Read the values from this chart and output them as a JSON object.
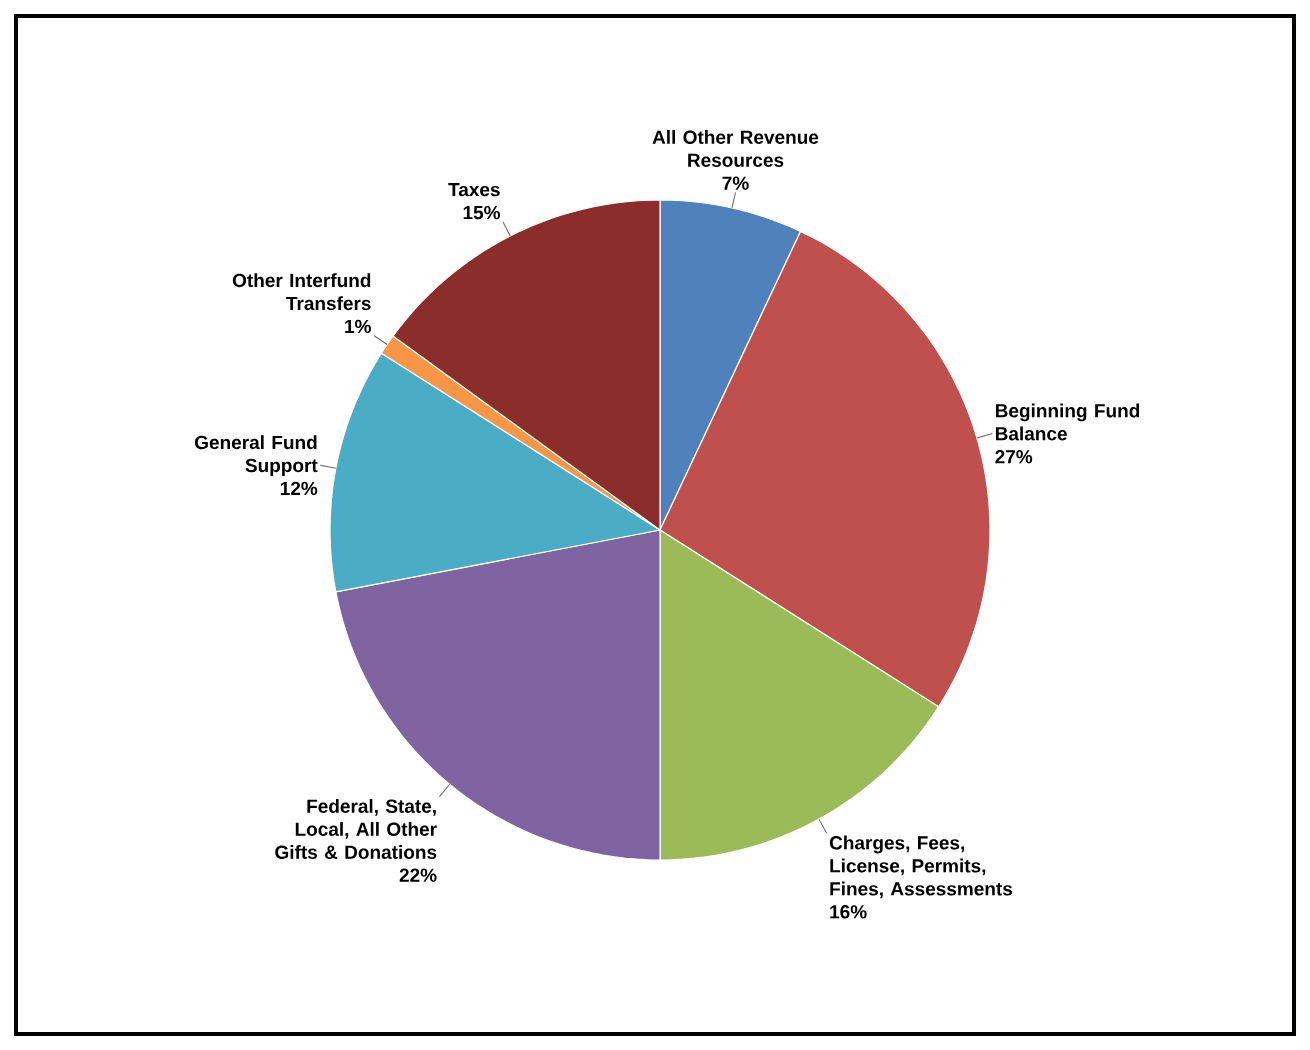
{
  "chart_data": {
    "type": "pie",
    "categories": [
      "All Other Revenue Resources",
      "Beginning Fund Balance",
      "Charges, Fees, License, Permits, Fines, Assessments",
      "Federal, State, Local, All Other Gifts & Donations",
      "General Fund Support",
      "Other Interfund Transfers",
      "Taxes"
    ],
    "values": [
      7,
      27,
      16,
      22,
      12,
      1,
      15
    ],
    "value_labels": [
      "7%",
      "27%",
      "16%",
      "22%",
      "12%",
      "1%",
      "15%"
    ],
    "colors": [
      "#4f81bd",
      "#c0504d",
      "#9bbb59",
      "#8064a2",
      "#4bacc6",
      "#f79646",
      "#8b2e2b"
    ]
  }
}
